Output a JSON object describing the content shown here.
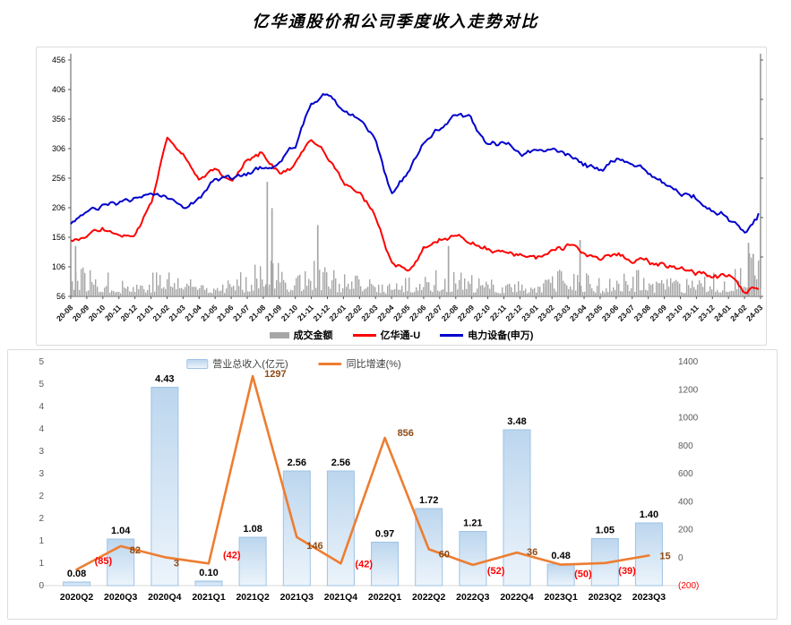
{
  "title": "亿华通股价和公司季度收入走势对比",
  "chart_data": [
    {
      "type": "line",
      "title": "亿华通股价和公司季度收入走势对比",
      "legend_position": "bottom",
      "grid": false,
      "left_axis": {
        "min": 56,
        "max": 456,
        "ticks": [
          456,
          406,
          356,
          306,
          256,
          206,
          156,
          106,
          56
        ]
      },
      "right_axis": {
        "min": 0,
        "max": 3000,
        "ticks": [
          3000,
          2500,
          2000,
          1500,
          1000,
          500,
          0
        ]
      },
      "x": [
        "20-08",
        "20-09",
        "20-10",
        "20-11",
        "20-12",
        "21-01",
        "21-02",
        "21-03",
        "21-04",
        "21-05",
        "21-06",
        "21-07",
        "21-08",
        "21-09",
        "21-10",
        "21-11",
        "21-12",
        "22-01",
        "22-02",
        "22-03",
        "22-04",
        "22-05",
        "22-06",
        "22-07",
        "22-08",
        "22-09",
        "22-10",
        "22-11",
        "22-12",
        "23-01",
        "23-02",
        "23-03",
        "23-04",
        "23-05",
        "23-06",
        "23-07",
        "23-08",
        "23-09",
        "23-10",
        "23-11",
        "23-12",
        "24-01",
        "24-02",
        "24-03"
      ],
      "series": [
        {
          "name": "成交金额",
          "type": "bar",
          "axis": "right",
          "color": "#a6a6a6",
          "values": [
            560,
            390,
            330,
            270,
            230,
            330,
            390,
            310,
            270,
            300,
            260,
            350,
            760,
            420,
            360,
            520,
            400,
            310,
            260,
            250,
            210,
            260,
            330,
            390,
            330,
            270,
            230,
            260,
            220,
            260,
            310,
            400,
            330,
            240,
            260,
            380,
            300,
            260,
            230,
            210,
            300,
            330,
            620,
            430
          ],
          "spikes": [
            {
              "m": 0.25,
              "v": 640
            },
            {
              "m": 12.2,
              "v": 1455
            },
            {
              "m": 12.5,
              "v": 1120
            },
            {
              "m": 15.35,
              "v": 905
            },
            {
              "m": 23.5,
              "v": 640
            },
            {
              "m": 31.7,
              "v": 716
            },
            {
              "m": 42.2,
              "v": 680
            },
            {
              "m": 42.5,
              "v": 540
            }
          ]
        },
        {
          "name": "亿华通-U",
          "type": "line",
          "axis": "left",
          "color": "#ff0000",
          "values": [
            152,
            160,
            171,
            158,
            150,
            205,
            322,
            300,
            250,
            268,
            255,
            288,
            300,
            262,
            280,
            318,
            290,
            252,
            228,
            195,
            110,
            100,
            133,
            150,
            152,
            147,
            136,
            129,
            123,
            117,
            136,
            141,
            128,
            120,
            127,
            119,
            112,
            107,
            103,
            97,
            93,
            87,
            62,
            74
          ]
        },
        {
          "name": "电力设备(申万)",
          "type": "line",
          "axis": "right",
          "color": "#0000cc",
          "values": [
            950,
            1060,
            1120,
            1160,
            1240,
            1320,
            1230,
            1160,
            1280,
            1500,
            1490,
            1570,
            1630,
            1660,
            1900,
            2430,
            2600,
            2380,
            2260,
            2050,
            1300,
            1560,
            1950,
            2150,
            2300,
            2210,
            1860,
            1950,
            1870,
            1800,
            1860,
            1810,
            1700,
            1610,
            1760,
            1700,
            1560,
            1460,
            1310,
            1260,
            1110,
            1000,
            800,
            1080
          ]
        }
      ]
    },
    {
      "type": "bar",
      "legend_position": "top",
      "grid": false,
      "categories": [
        "2020Q2",
        "2020Q3",
        "2020Q4",
        "2021Q1",
        "2021Q2",
        "2021Q3",
        "2021Q4",
        "2022Q1",
        "2022Q2",
        "2022Q3",
        "2022Q4",
        "2023Q1",
        "2023Q2",
        "2023Q3"
      ],
      "left_axis": {
        "min": 0,
        "max": 5,
        "tick_labels": [
          "5",
          "5",
          "4",
          "4",
          "3",
          "3",
          "2",
          "2",
          "1",
          "1",
          "0"
        ]
      },
      "right_axis": {
        "min": -200,
        "max": 1400,
        "tick_labels": [
          "1400",
          "1200",
          "1000",
          "800",
          "600",
          "400",
          "200",
          "0",
          "(200)"
        ],
        "negative_tick_color": "#ff0000"
      },
      "series": [
        {
          "name": "营业总收入(亿元)",
          "type": "bar",
          "axis": "left",
          "values": [
            0.08,
            1.04,
            4.43,
            0.1,
            1.08,
            2.56,
            2.56,
            0.97,
            1.72,
            1.21,
            3.48,
            0.48,
            1.05,
            1.4
          ],
          "labels": [
            "0.08",
            "1.04",
            "4.43",
            "0.10",
            "1.08",
            "2.56",
            "2.56",
            "0.97",
            "1.72",
            "1.21",
            "3.48",
            "0.48",
            "1.05",
            "1.40"
          ],
          "fill_top": "#bcd6ee",
          "fill_bottom": "#ecf4fb",
          "border": "#9dc3e6",
          "label_color": "#000000"
        },
        {
          "name": "同比增速(%)",
          "type": "line",
          "axis": "right",
          "color": "#ed7d31",
          "values": [
            -85,
            82,
            3,
            -42,
            1297,
            146,
            -42,
            856,
            60,
            -52,
            36,
            -50,
            -39,
            15
          ],
          "labels": [
            "(85)",
            "82",
            "3",
            "(42)",
            "1297",
            "146",
            "(42)",
            "856",
            "60",
            "(52)",
            "36",
            "(50)",
            "(39)",
            "15"
          ],
          "positive_label_color": "#8f4b15",
          "negative_label_color": "#ff0000"
        }
      ]
    }
  ]
}
